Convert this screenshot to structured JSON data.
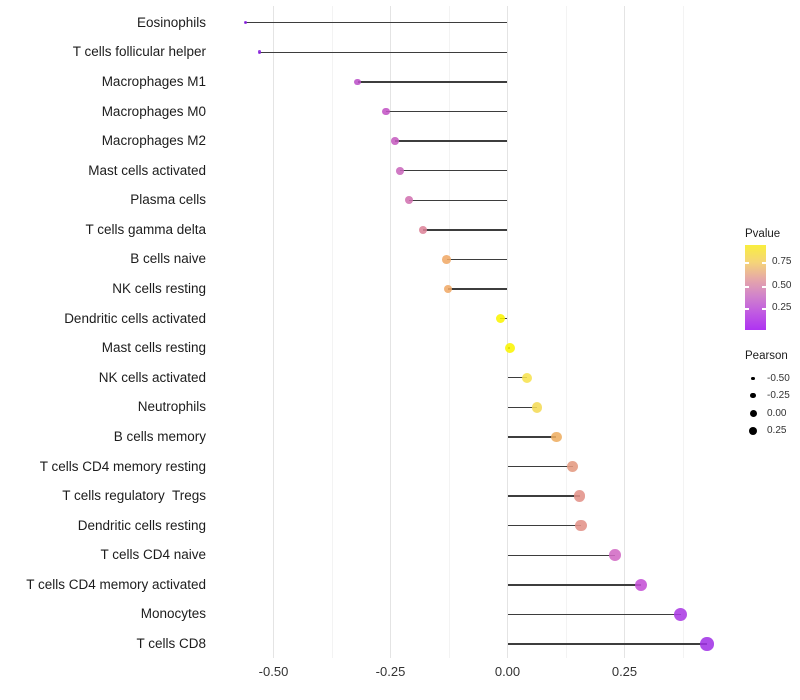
{
  "chart_data": {
    "type": "lollipop",
    "orientation": "horizontal",
    "title": "",
    "xlabel": "",
    "ylabel": "",
    "grid": "on",
    "xlim": [
      -0.625,
      0.458
    ],
    "x_tick_values": [
      -0.5,
      -0.25,
      0,
      0.25
    ],
    "x_tick_labels": [
      "-0.50",
      "-0.25",
      "0.00",
      "0.25"
    ],
    "rows": [
      {
        "label": "Eosinophils",
        "pearson": -0.56,
        "dot_color": "#871CE2"
      },
      {
        "label": "T cells follicular helper",
        "pearson": -0.53,
        "dot_color": "#8A22DF"
      },
      {
        "label": "Macrophages M1",
        "pearson": -0.32,
        "dot_color": "#BB50C8"
      },
      {
        "label": "Macrophages M0",
        "pearson": -0.26,
        "dot_color": "#C253C4"
      },
      {
        "label": "Macrophages M2",
        "pearson": -0.24,
        "dot_color": "#C55CC0"
      },
      {
        "label": "Mast cells activated",
        "pearson": -0.23,
        "dot_color": "#C966BB"
      },
      {
        "label": "Plasma cells",
        "pearson": -0.21,
        "dot_color": "#D171B0"
      },
      {
        "label": "T cells gamma delta",
        "pearson": -0.18,
        "dot_color": "#DC8399"
      },
      {
        "label": "B cells naive",
        "pearson": -0.13,
        "dot_color": "#F0A966"
      },
      {
        "label": "NK cells resting",
        "pearson": -0.127,
        "dot_color": "#F0A966"
      },
      {
        "label": "Dendritic cells activated",
        "pearson": -0.015,
        "dot_color": "#FAF500"
      },
      {
        "label": "Mast cells resting",
        "pearson": 0.005,
        "dot_color": "#FAF500"
      },
      {
        "label": "NK cells activated",
        "pearson": 0.042,
        "dot_color": "#F7E24E"
      },
      {
        "label": "Neutrophils",
        "pearson": 0.063,
        "dot_color": "#F4DA55"
      },
      {
        "label": "B cells memory",
        "pearson": 0.104,
        "dot_color": "#EEAD60"
      },
      {
        "label": "T cells CD4 memory resting",
        "pearson": 0.139,
        "dot_color": "#E39980"
      },
      {
        "label": "T cells regulatory  Tregs",
        "pearson": 0.154,
        "dot_color": "#E29188"
      },
      {
        "label": "Dendritic cells resting",
        "pearson": 0.157,
        "dot_color": "#E29188"
      },
      {
        "label": "T cells CD4 naive",
        "pearson": 0.23,
        "dot_color": "#D168C3"
      },
      {
        "label": "T cells CD4 memory activated",
        "pearson": 0.285,
        "dot_color": "#C44FD6"
      },
      {
        "label": "Monocytes",
        "pearson": 0.37,
        "dot_color": "#AA3AE3"
      },
      {
        "label": "T cells CD8",
        "pearson": 0.426,
        "dot_color": "#A132E6"
      }
    ],
    "legends": {
      "pvalue": {
        "title": "Pvalue",
        "tick_labels": [
          "0.75",
          "0.50",
          "0.25"
        ],
        "gradient_top_to_bottom": [
          "#F9EE3E",
          "#F5D578",
          "#E6A8A8",
          "#D183CB",
          "#C05AE2",
          "#AF33F2"
        ]
      },
      "pearson": {
        "title": "Pearson",
        "entries": [
          "-0.50",
          "-0.25",
          "0.00",
          "0.25"
        ]
      }
    }
  }
}
